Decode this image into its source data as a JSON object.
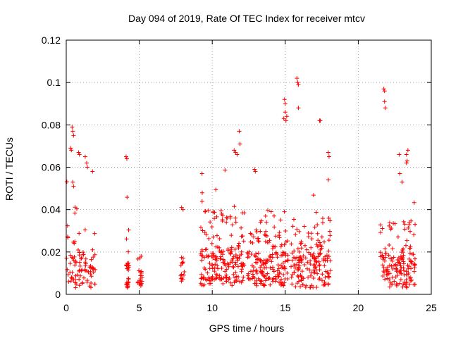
{
  "chart_data": {
    "type": "scatter",
    "title": "Day 094 of 2019, Rate Of TEC Index for receiver mtcv",
    "xlabel": "GPS time / hours",
    "ylabel": "ROTI / TECUs",
    "xlim": [
      0,
      25
    ],
    "ylim": [
      0,
      0.12
    ],
    "x_ticks": [
      0,
      5,
      10,
      15,
      20,
      25
    ],
    "x_tick_labels": [
      "0",
      "5",
      "10",
      "15",
      "20",
      "25"
    ],
    "y_ticks": [
      0,
      0.02,
      0.04,
      0.06,
      0.08,
      0.1,
      0.12
    ],
    "y_tick_labels": [
      "0",
      "0.02",
      "0.04",
      "0.06",
      "0.08",
      "0.1",
      "0.12"
    ],
    "grid": true,
    "marker": "+",
    "color": "#ff0000",
    "clusters": [
      {
        "x_start": 0.0,
        "x_end": 2.0,
        "base_low": 0.003,
        "base_high": 0.02,
        "spike_max": 0.065,
        "density": 90
      },
      {
        "x_start": 4.1,
        "x_end": 4.3,
        "base_low": 0.003,
        "base_high": 0.015,
        "spike_max": 0.055,
        "density": 30
      },
      {
        "x_start": 4.9,
        "x_end": 5.2,
        "base_low": 0.003,
        "base_high": 0.012,
        "spike_max": 0.018,
        "density": 20
      },
      {
        "x_start": 7.8,
        "x_end": 8.1,
        "base_low": 0.006,
        "base_high": 0.014,
        "spike_max": 0.021,
        "density": 14
      },
      {
        "x_start": 9.1,
        "x_end": 12.2,
        "base_low": 0.004,
        "base_high": 0.022,
        "spike_max": 0.06,
        "density": 200
      },
      {
        "x_start": 12.4,
        "x_end": 15.2,
        "base_low": 0.004,
        "base_high": 0.02,
        "spike_max": 0.04,
        "density": 180
      },
      {
        "x_start": 15.4,
        "x_end": 18.1,
        "base_low": 0.003,
        "base_high": 0.022,
        "spike_max": 0.05,
        "density": 170
      },
      {
        "x_start": 21.5,
        "x_end": 23.9,
        "base_low": 0.003,
        "base_high": 0.02,
        "spike_max": 0.05,
        "density": 150
      }
    ],
    "outliers": [
      {
        "x": 0.4,
        "y": 0.079
      },
      {
        "x": 0.45,
        "y": 0.077
      },
      {
        "x": 0.5,
        "y": 0.075
      },
      {
        "x": 0.3,
        "y": 0.069
      },
      {
        "x": 0.35,
        "y": 0.068
      },
      {
        "x": 0.85,
        "y": 0.067
      },
      {
        "x": 0.9,
        "y": 0.066
      },
      {
        "x": 1.3,
        "y": 0.065
      },
      {
        "x": 1.4,
        "y": 0.062
      },
      {
        "x": 1.45,
        "y": 0.06
      },
      {
        "x": 1.8,
        "y": 0.058
      },
      {
        "x": 0.45,
        "y": 0.053
      },
      {
        "x": 0.5,
        "y": 0.051
      },
      {
        "x": 4.1,
        "y": 0.065
      },
      {
        "x": 4.15,
        "y": 0.064
      },
      {
        "x": 7.9,
        "y": 0.041
      },
      {
        "x": 8.0,
        "y": 0.04
      },
      {
        "x": 9.3,
        "y": 0.057
      },
      {
        "x": 11.5,
        "y": 0.068
      },
      {
        "x": 11.6,
        "y": 0.067
      },
      {
        "x": 11.7,
        "y": 0.066
      },
      {
        "x": 11.85,
        "y": 0.077
      },
      {
        "x": 11.9,
        "y": 0.071
      },
      {
        "x": 12.9,
        "y": 0.059
      },
      {
        "x": 12.95,
        "y": 0.058
      },
      {
        "x": 14.95,
        "y": 0.092
      },
      {
        "x": 15.0,
        "y": 0.09
      },
      {
        "x": 15.0,
        "y": 0.086
      },
      {
        "x": 14.9,
        "y": 0.083
      },
      {
        "x": 15.05,
        "y": 0.082
      },
      {
        "x": 15.1,
        "y": 0.084
      },
      {
        "x": 15.8,
        "y": 0.102
      },
      {
        "x": 15.85,
        "y": 0.1
      },
      {
        "x": 15.9,
        "y": 0.099
      },
      {
        "x": 15.9,
        "y": 0.088
      },
      {
        "x": 17.35,
        "y": 0.082
      },
      {
        "x": 17.4,
        "y": 0.082
      },
      {
        "x": 17.95,
        "y": 0.067
      },
      {
        "x": 18.0,
        "y": 0.065
      },
      {
        "x": 17.95,
        "y": 0.054
      },
      {
        "x": 21.75,
        "y": 0.097
      },
      {
        "x": 21.8,
        "y": 0.096
      },
      {
        "x": 21.8,
        "y": 0.091
      },
      {
        "x": 21.85,
        "y": 0.088
      },
      {
        "x": 22.8,
        "y": 0.066
      },
      {
        "x": 23.3,
        "y": 0.066
      },
      {
        "x": 23.4,
        "y": 0.068
      },
      {
        "x": 23.35,
        "y": 0.063
      },
      {
        "x": 23.3,
        "y": 0.062
      },
      {
        "x": 22.85,
        "y": 0.057
      },
      {
        "x": 23.0,
        "y": 0.053
      }
    ]
  }
}
